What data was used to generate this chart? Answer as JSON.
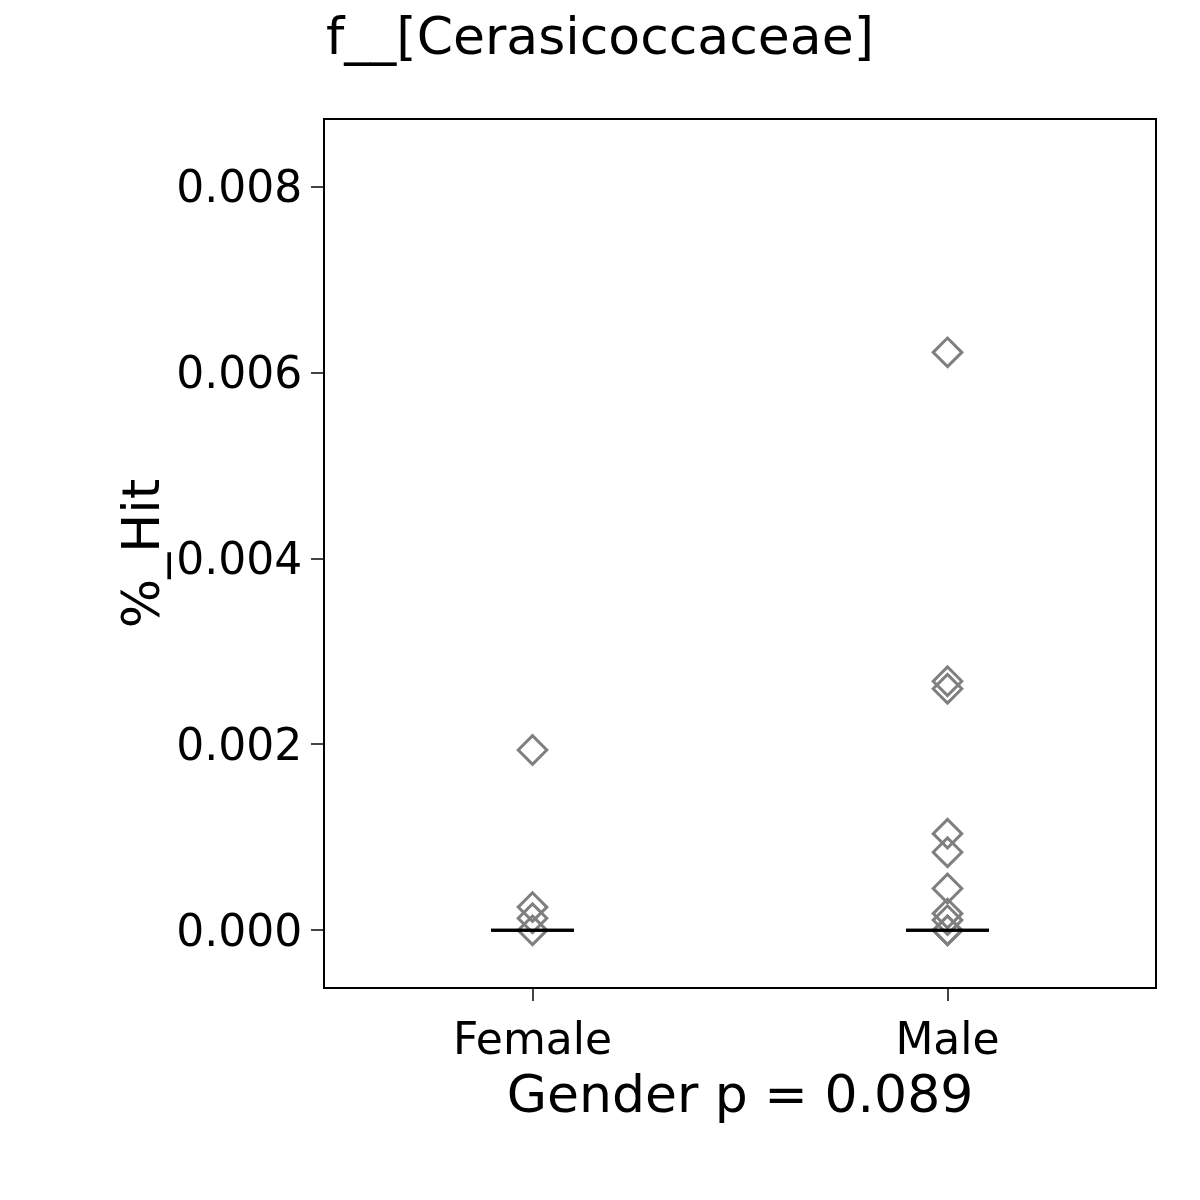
{
  "chart_data": {
    "type": "scatter",
    "title": "f__[Cerasicoccaceae]",
    "xlabel": "Gender p = 0.089",
    "ylabel": "%_Hit",
    "categories": [
      "Female",
      "Male"
    ],
    "ylim": [
      -0.00061,
      0.00872
    ],
    "yticks": [
      {
        "value": 0,
        "label": "0.000"
      },
      {
        "value": 0.002,
        "label": "0.002"
      },
      {
        "value": 0.004,
        "label": "0.004"
      },
      {
        "value": 0.006,
        "label": "0.006"
      },
      {
        "value": 0.008,
        "label": "0.008"
      }
    ],
    "marker": "diamond",
    "series": [
      {
        "color": "#7f7f7f",
        "x": [
          "Female",
          "Female",
          "Female",
          "Female"
        ],
        "values": [
          0.00194,
          0.00025,
          0.00013,
          0.0
        ]
      },
      {
        "color": "#7f7f7f",
        "x": [
          "Male",
          "Male",
          "Male",
          "Male",
          "Male",
          "Male",
          "Male",
          "Male",
          "Male",
          "Male"
        ],
        "values": [
          0.00622,
          0.00268,
          0.0026,
          0.00104,
          0.00084,
          0.00045,
          0.00018,
          0.00011,
          0.0,
          0.0
        ]
      },
      {
        "type": "box",
        "color": "#000000",
        "boxes": [
          {
            "low": 0,
            "q1": 0,
            "median": 0,
            "q3": 0,
            "high": 0
          },
          {
            "low": 0,
            "q1": 0,
            "median": 0,
            "q3": 0,
            "high": 0
          }
        ]
      }
    ]
  }
}
